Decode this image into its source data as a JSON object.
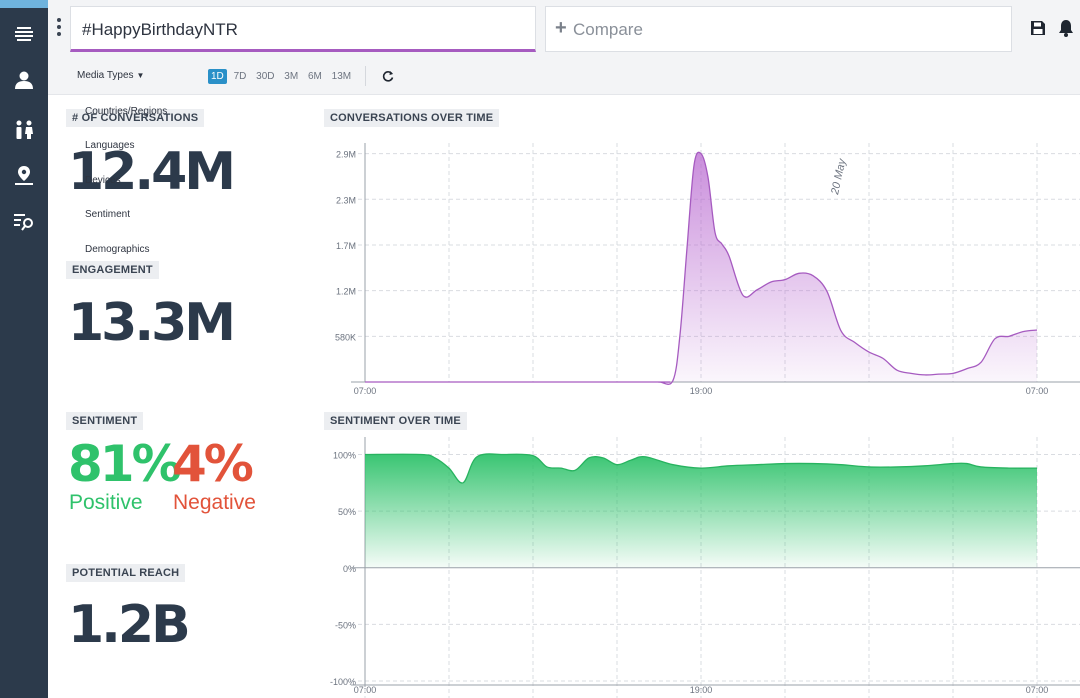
{
  "search": {
    "query": "#HappyBirthdayNTR",
    "compare_label": "Compare"
  },
  "toolbar": {
    "media_types": "Media Types",
    "ranges": [
      "1D",
      "7D",
      "30D",
      "3M",
      "6M",
      "13M"
    ],
    "active_range": "1D"
  },
  "dropdown": {
    "items": [
      "Countries/Regions",
      "Languages",
      "Devices",
      "Sentiment",
      "Demographics"
    ]
  },
  "stats": {
    "conversations_title": "# OF CONVERSATIONS",
    "conversations_value": "12.4M",
    "engagement_title": "ENGAGEMENT",
    "engagement_value": "13.3M",
    "sentiment_title": "SENTIMENT",
    "positive_value": "81%",
    "positive_label": "Positive",
    "negative_value": "4%",
    "negative_label": "Negative",
    "reach_title": "POTENTIAL REACH",
    "reach_value": "1.2B"
  },
  "colors": {
    "accent": "#a65bc0",
    "positive": "#2fc26b",
    "negative": "#e2533a",
    "sidebar": "#2c3a4b",
    "active": "#2a90c8"
  },
  "icons": [
    "menu-lines-icon",
    "user-icon",
    "people-icon",
    "map-pin-icon",
    "search-list-icon",
    "save-icon",
    "bell-icon",
    "refresh-icon"
  ],
  "chart_data": [
    {
      "type": "area",
      "title": "CONVERSATIONS OVER TIME",
      "x_ticks": [
        "07:00",
        "19:00",
        "07:00"
      ],
      "y_ticks": [
        "580K",
        "1.2M",
        "1.7M",
        "2.3M",
        "2.9M"
      ],
      "annotation": "20 May",
      "ylim": [
        0,
        2900000
      ],
      "grid": true,
      "x": [
        0,
        10,
        10.5,
        11,
        11.25,
        11.5,
        11.75,
        12,
        12.25,
        12.5,
        12.75,
        13,
        13.5,
        14,
        14.5,
        15,
        15.5,
        16,
        16.5,
        17,
        17.5,
        18,
        18.5,
        19,
        19.5,
        20,
        20.5,
        21,
        21.5,
        22,
        22.5,
        23,
        23.5,
        24
      ],
      "values": [
        0,
        0,
        0,
        20000,
        600000,
        1700000,
        2750000,
        2900000,
        2600000,
        1900000,
        1750000,
        1600000,
        1100000,
        1170000,
        1270000,
        1300000,
        1380000,
        1350000,
        1150000,
        650000,
        500000,
        380000,
        300000,
        150000,
        110000,
        90000,
        100000,
        110000,
        170000,
        250000,
        550000,
        580000,
        640000,
        660000
      ]
    },
    {
      "type": "area",
      "title": "SENTIMENT OVER TIME",
      "x_ticks": [
        "07:00",
        "19:00",
        "07:00"
      ],
      "y_ticks": [
        "100%",
        "50%",
        "0%",
        "-50%",
        "-100%"
      ],
      "ylim": [
        -100,
        100
      ],
      "grid": true,
      "x": [
        0,
        2,
        2.5,
        3,
        3.5,
        4,
        5,
        6,
        6.5,
        7,
        7.5,
        8,
        8.5,
        9,
        9.5,
        10,
        11,
        12,
        13,
        14,
        15,
        16,
        17,
        18,
        19,
        20,
        21,
        21.5,
        22,
        23,
        24
      ],
      "values": [
        100,
        100,
        97,
        88,
        75,
        98,
        100,
        99,
        89,
        88,
        86,
        97,
        97,
        91,
        95,
        98,
        91,
        88,
        90,
        91,
        92,
        92,
        91,
        89,
        89,
        90,
        92,
        92,
        89,
        88,
        88
      ]
    }
  ]
}
